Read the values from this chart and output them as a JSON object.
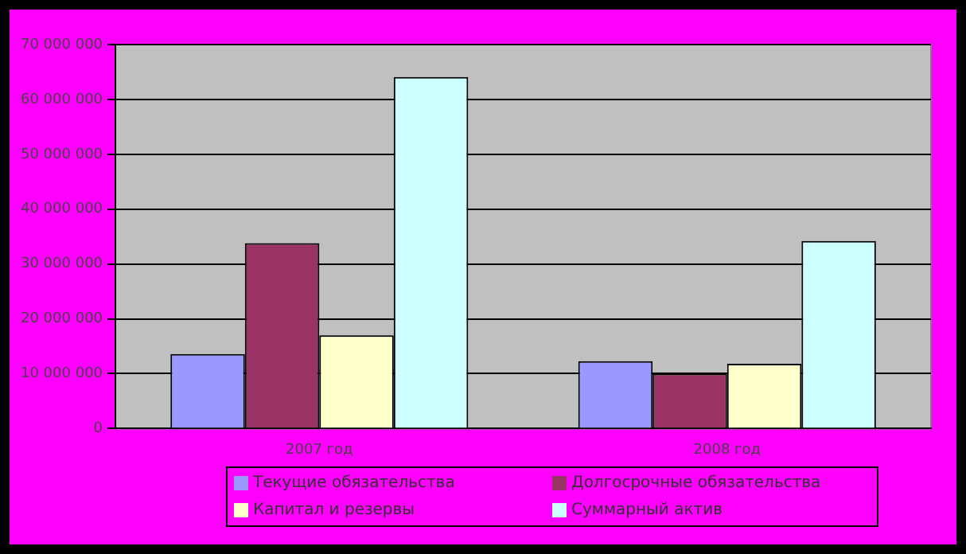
{
  "chart_data": {
    "type": "bar",
    "categories": [
      "2007 год",
      "2008 год"
    ],
    "series": [
      {
        "name": "Текущие обязательства",
        "color": "#9999ff",
        "values": [
          13600000,
          12300000
        ]
      },
      {
        "name": "Долгосрочные обязательства",
        "color": "#993366",
        "values": [
          33800000,
          10000000
        ]
      },
      {
        "name": "Капитал и резервы",
        "color": "#ffffcc",
        "values": [
          17000000,
          11800000
        ]
      },
      {
        "name": "Суммарный актив",
        "color": "#ccffff",
        "values": [
          64100000,
          34200000
        ]
      }
    ],
    "ylim": [
      0,
      70000000
    ],
    "yticks": [
      {
        "value": 0,
        "label": "0"
      },
      {
        "value": 10000000,
        "label": "10 000 000"
      },
      {
        "value": 20000000,
        "label": "20 000 000"
      },
      {
        "value": 30000000,
        "label": "30 000 000"
      },
      {
        "value": 40000000,
        "label": "40 000 000"
      },
      {
        "value": 50000000,
        "label": "50 000 000"
      },
      {
        "value": 60000000,
        "label": "60 000 000"
      },
      {
        "value": 70000000,
        "label": "70 000 000"
      }
    ],
    "grid": "y",
    "legend": "bottom"
  }
}
